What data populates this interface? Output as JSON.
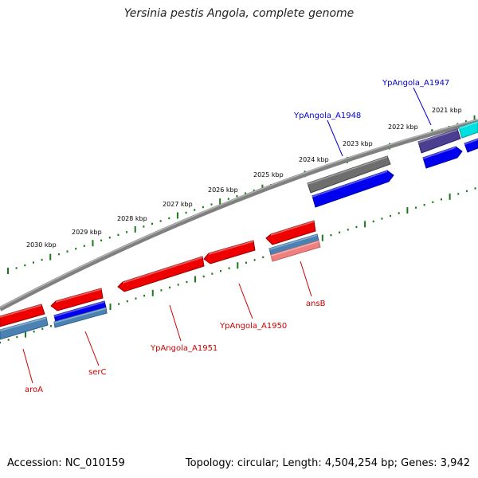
{
  "title": "Yersinia pestis Angola, complete genome",
  "footer": {
    "accession": "Accession: NC_010159",
    "topology": "Topology: circular; Length: 4,504,254 bp; Genes: 3,942"
  },
  "colors": {
    "backbone": "#808080",
    "tick": "#1a7a1a",
    "tick_label": "#000000",
    "forward_gene": "#0000ee",
    "reverse_gene": "#ee0000",
    "gray_feature": "#6e6e6e",
    "purple_feature": "#4b3d8f",
    "cyan_feature": "#00e0e0",
    "steelblue_feature": "#4a82b4",
    "pink_feature": "#f08080",
    "label_forward": "#0000cc",
    "label_reverse": "#cc0000"
  },
  "ruler_labels": [
    {
      "text": "2021 kbp"
    },
    {
      "text": "2022 kbp"
    },
    {
      "text": "2023 kbp"
    },
    {
      "text": "2024 kbp"
    },
    {
      "text": "2025 kbp"
    },
    {
      "text": "2026 kbp"
    },
    {
      "text": "2027 kbp"
    },
    {
      "text": "2028 kbp"
    },
    {
      "text": "2029 kbp"
    },
    {
      "text": "2030 kbp"
    }
  ],
  "gene_labels": [
    {
      "text": "YpAngola_A1947",
      "strand": "forward"
    },
    {
      "text": "YpAngola_A1948",
      "strand": "forward"
    },
    {
      "text": "ansB",
      "strand": "reverse"
    },
    {
      "text": "YpAngola_A1950",
      "strand": "reverse"
    },
    {
      "text": "YpAngola_A1951",
      "strand": "reverse"
    },
    {
      "text": "serC",
      "strand": "reverse"
    },
    {
      "text": "aroA",
      "strand": "reverse"
    }
  ]
}
